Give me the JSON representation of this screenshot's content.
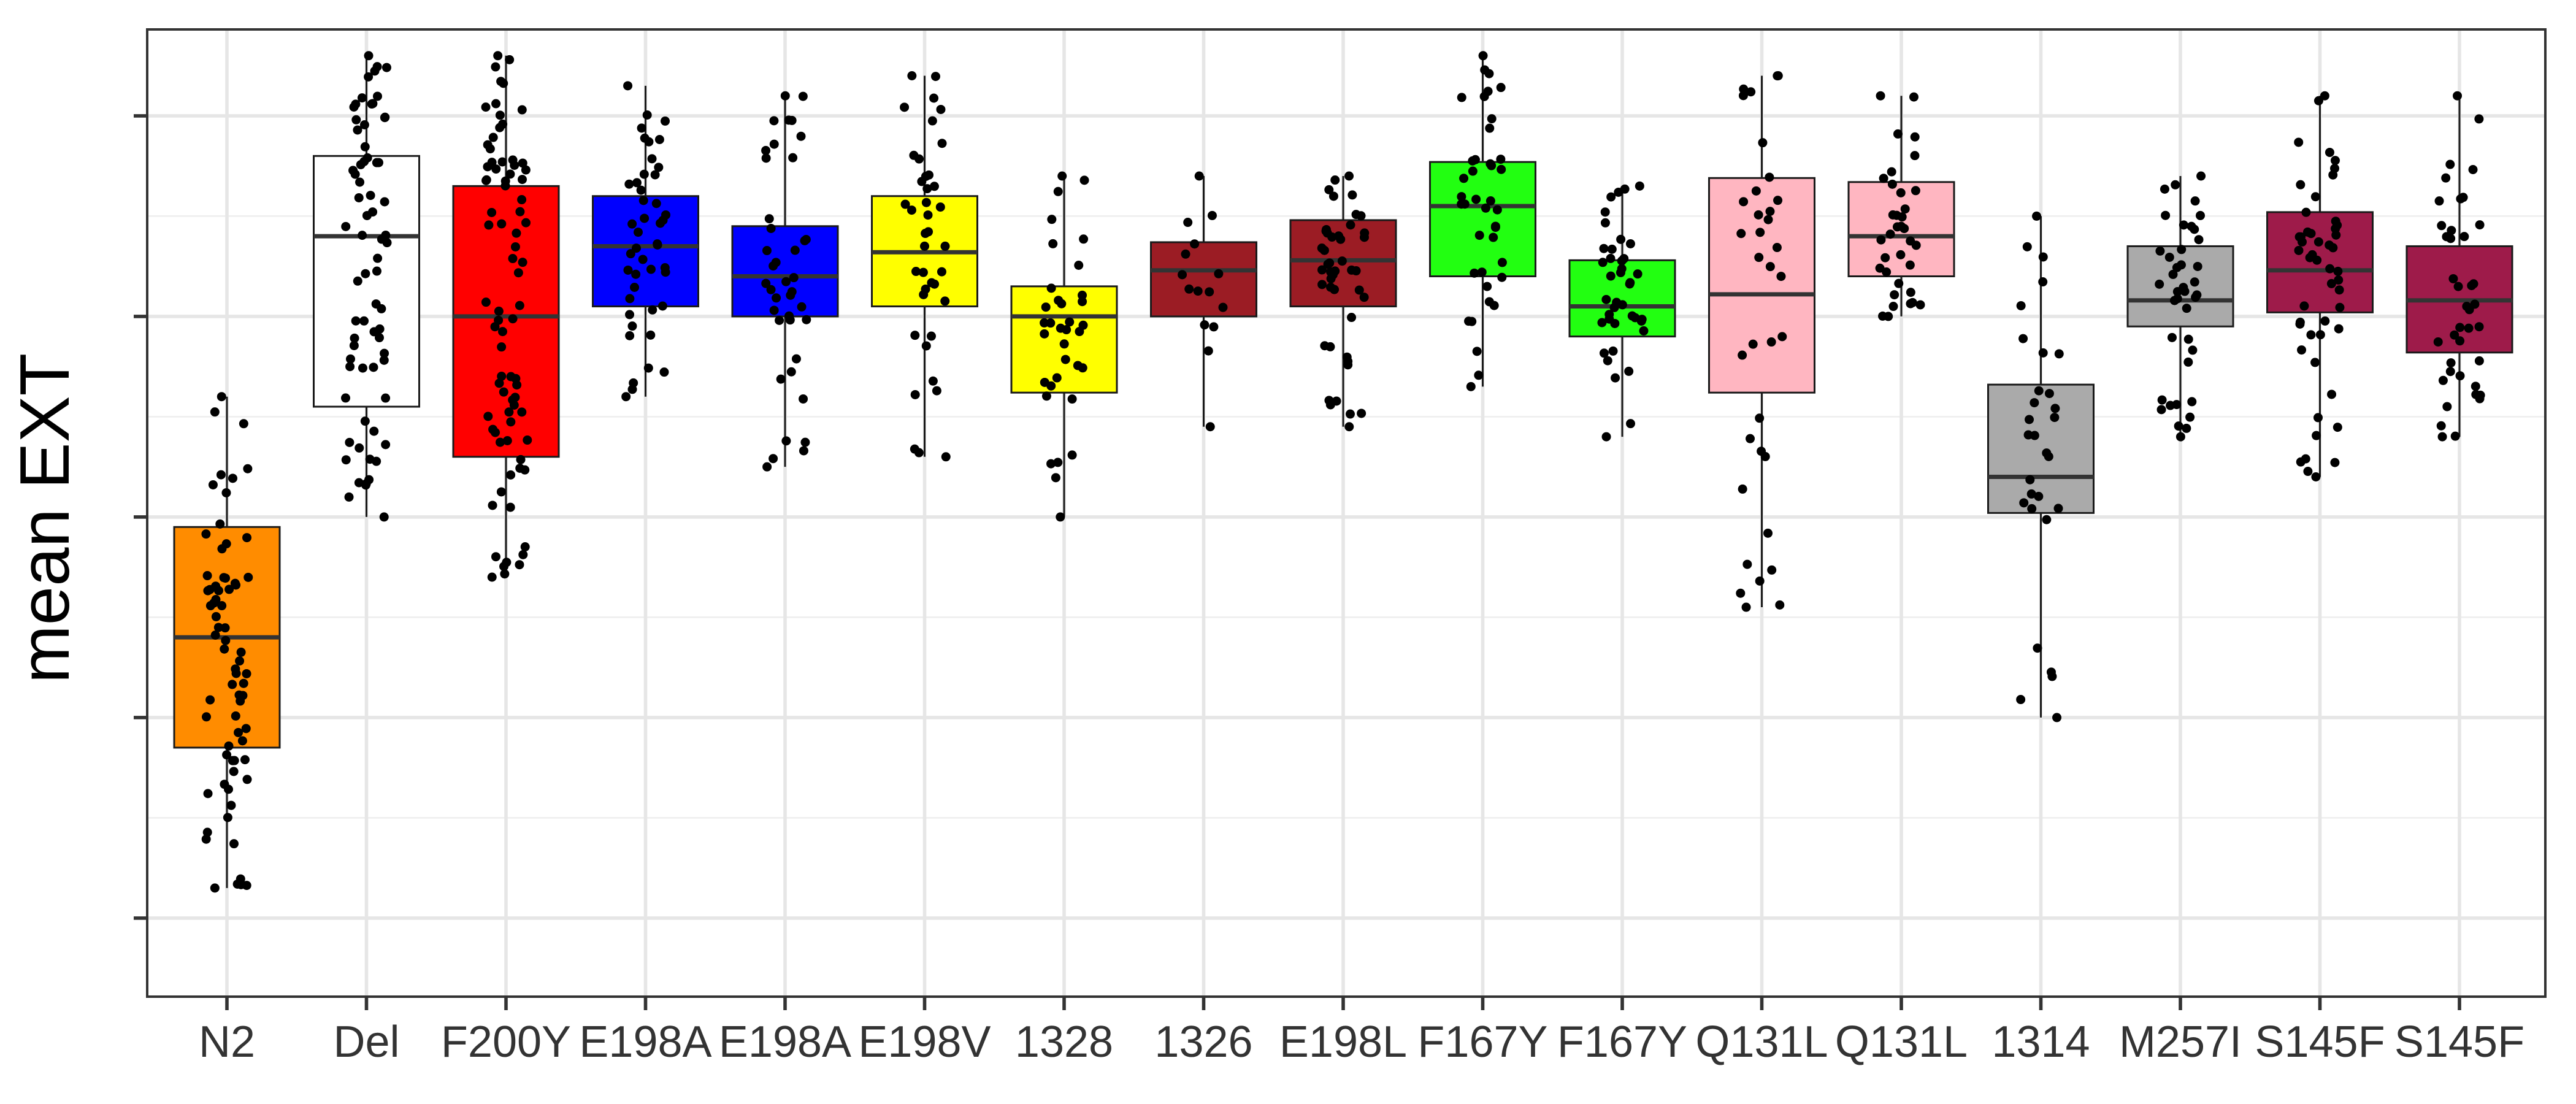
{
  "chart_data": {
    "type": "boxplot",
    "title": "",
    "xlabel": "",
    "ylabel": "mean EXT",
    "y_tick_labels_shown": false,
    "ylim": [
      0,
      4.6
    ],
    "y_major_ticks": [
      0.3,
      1.3,
      2.3,
      3.3,
      4.3
    ],
    "grid": true,
    "legend": "none",
    "categories": [
      "N2",
      "Del",
      "F200Y",
      "E198A",
      "E198A",
      "E198V",
      "1328",
      "1326",
      "E198L",
      "F167Y",
      "F167Y",
      "Q131L",
      "Q131L",
      "1314",
      "M257I",
      "S145F",
      "S145F"
    ],
    "series": [
      {
        "color": "#FF8C00",
        "q1": 1.15,
        "median": 1.7,
        "q3": 2.25,
        "whisker_low": 0.45,
        "whisker_high": 2.9,
        "n": 70
      },
      {
        "color": "#FFFFFF",
        "q1": 2.85,
        "median": 3.7,
        "q3": 4.1,
        "whisker_low": 2.3,
        "whisker_high": 4.6,
        "n": 70
      },
      {
        "color": "#FF0000",
        "q1": 2.6,
        "median": 3.3,
        "q3": 3.95,
        "whisker_low": 2.0,
        "whisker_high": 4.6,
        "n": 80
      },
      {
        "color": "#0000FF",
        "q1": 3.35,
        "median": 3.65,
        "q3": 3.9,
        "whisker_low": 2.9,
        "whisker_high": 4.45,
        "n": 45
      },
      {
        "color": "#0000FF",
        "q1": 3.3,
        "median": 3.5,
        "q3": 3.75,
        "whisker_low": 2.55,
        "whisker_high": 4.4,
        "n": 40
      },
      {
        "color": "#FFFF00",
        "q1": 3.35,
        "median": 3.62,
        "q3": 3.9,
        "whisker_low": 2.6,
        "whisker_high": 4.5,
        "n": 40
      },
      {
        "color": "#FFFF00",
        "q1": 2.92,
        "median": 3.3,
        "q3": 3.45,
        "whisker_low": 2.3,
        "whisker_high": 4.0,
        "n": 35
      },
      {
        "color": "#9B1C24",
        "q1": 3.3,
        "median": 3.53,
        "q3": 3.67,
        "whisker_low": 2.75,
        "whisker_high": 4.0,
        "n": 15
      },
      {
        "color": "#9B1C24",
        "q1": 3.35,
        "median": 3.58,
        "q3": 3.78,
        "whisker_low": 2.75,
        "whisker_high": 4.0,
        "n": 45
      },
      {
        "color": "#22FF11",
        "q1": 3.5,
        "median": 3.85,
        "q3": 4.07,
        "whisker_low": 2.95,
        "whisker_high": 4.6,
        "n": 40
      },
      {
        "color": "#22FF11",
        "q1": 3.2,
        "median": 3.35,
        "q3": 3.58,
        "whisker_low": 2.7,
        "whisker_high": 3.95,
        "n": 40
      },
      {
        "color": "#FFB6C1",
        "q1": 2.92,
        "median": 3.41,
        "q3": 3.99,
        "whisker_low": 1.85,
        "whisker_high": 4.5,
        "n": 35
      },
      {
        "color": "#FFB6C1",
        "q1": 3.5,
        "median": 3.7,
        "q3": 3.97,
        "whisker_low": 3.3,
        "whisker_high": 4.4,
        "n": 35
      },
      {
        "color": "#AAAAAA",
        "q1": 2.32,
        "median": 2.5,
        "q3": 2.96,
        "whisker_low": 1.3,
        "whisker_high": 3.8,
        "n": 30
      },
      {
        "color": "#AAAAAA",
        "q1": 3.25,
        "median": 3.38,
        "q3": 3.65,
        "whisker_low": 2.7,
        "whisker_high": 4.0,
        "n": 40
      },
      {
        "color": "#9E1B4A",
        "q1": 3.32,
        "median": 3.53,
        "q3": 3.82,
        "whisker_low": 2.5,
        "whisker_high": 4.4,
        "n": 50
      },
      {
        "color": "#9E1B4A",
        "q1": 3.12,
        "median": 3.38,
        "q3": 3.65,
        "whisker_low": 2.7,
        "whisker_high": 4.4,
        "n": 40
      }
    ]
  }
}
